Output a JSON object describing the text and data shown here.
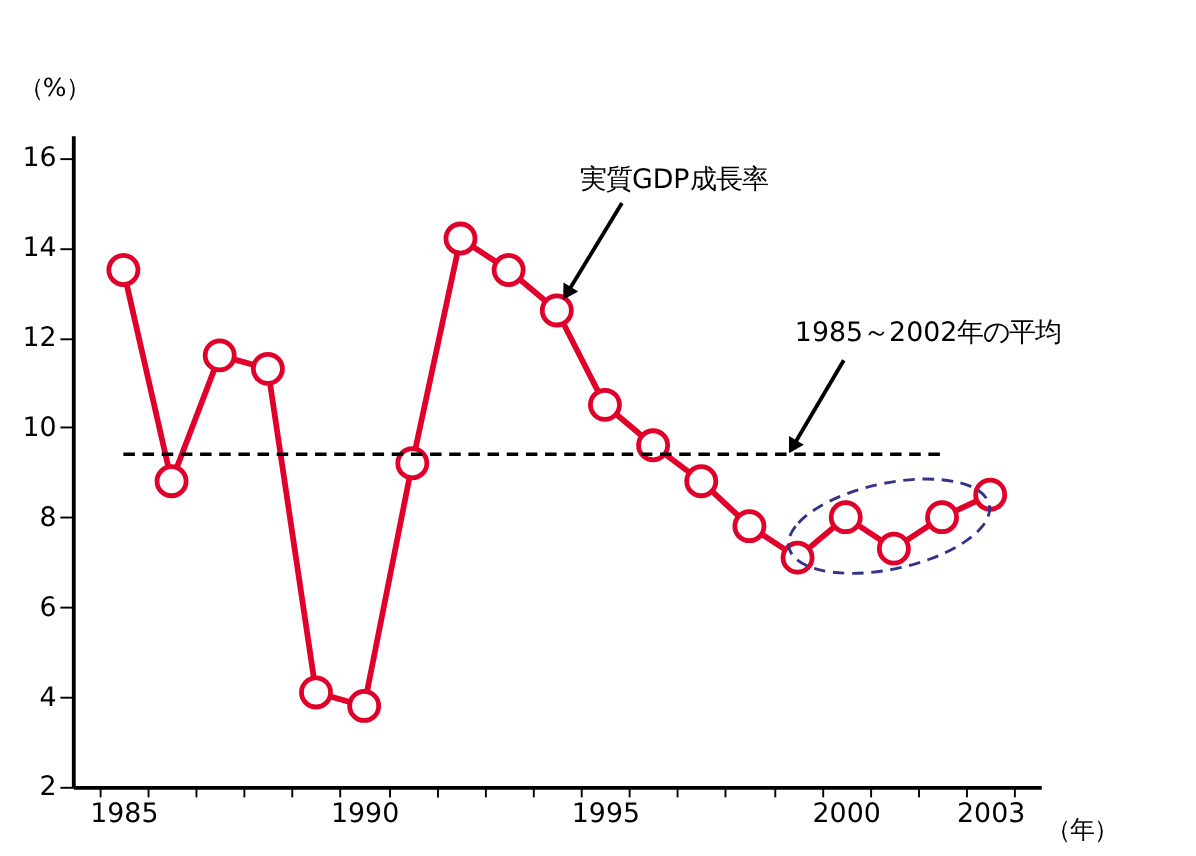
{
  "chart_data": {
    "type": "line",
    "categories": [
      "1985",
      null,
      null,
      null,
      null,
      "1990",
      null,
      null,
      null,
      null,
      "1995",
      null,
      null,
      null,
      null,
      "2000",
      null,
      null,
      "2003"
    ],
    "series": [
      {
        "name": "実質GDP成長率",
        "color": "#e0002a",
        "values": [
          13.5,
          8.8,
          11.6,
          11.3,
          4.1,
          3.8,
          9.2,
          14.2,
          13.5,
          12.6,
          10.5,
          9.6,
          8.8,
          7.8,
          7.1,
          8.0,
          7.3,
          8.0,
          8.5
        ]
      }
    ],
    "ylim": [
      2,
      16.5
    ],
    "yticks": [
      2,
      4,
      6,
      8,
      10,
      12,
      14,
      16
    ],
    "xlabel": "（年）",
    "ylabel": "（%）",
    "ref_lines": [
      {
        "axis": "y",
        "value": 9.4,
        "label": "1985～2002年の平均",
        "color": "#000000",
        "line_style": "dashed"
      }
    ],
    "marker": "circle",
    "line_style": "solid",
    "grid": false,
    "legend": false
  }
}
